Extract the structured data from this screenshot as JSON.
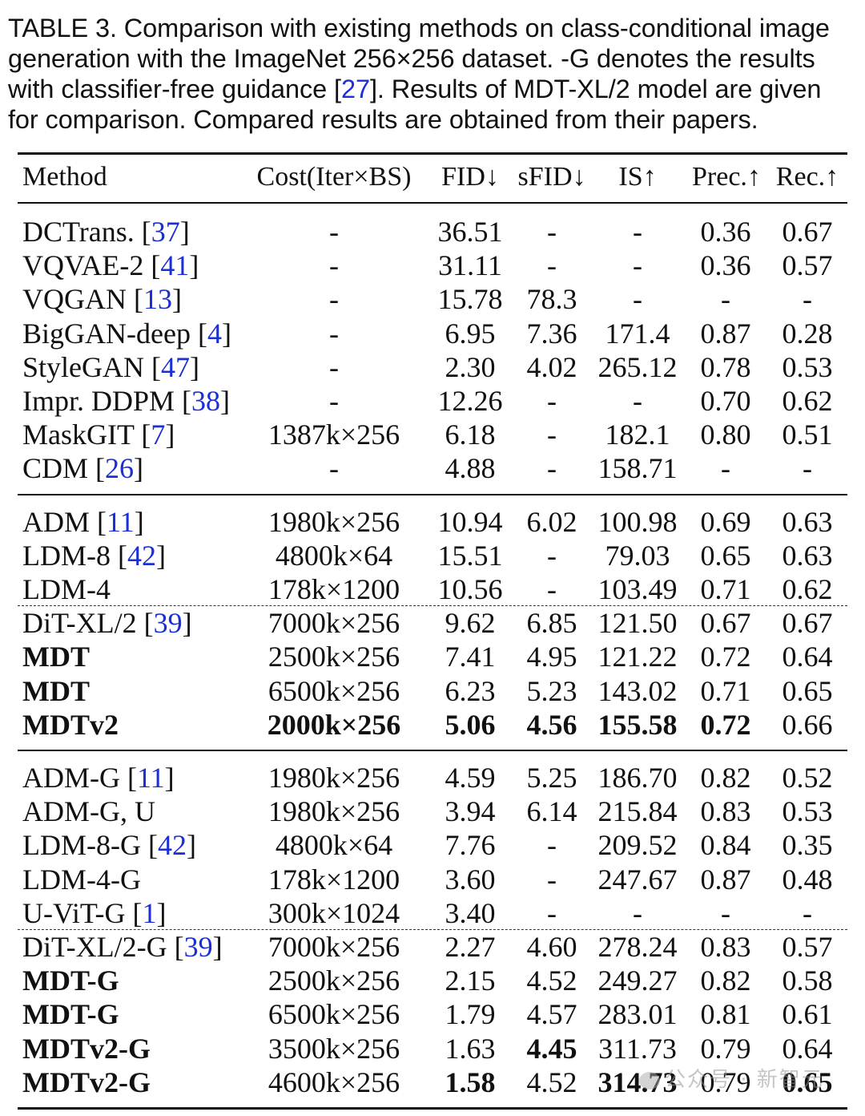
{
  "caption": {
    "lines": [
      "TABLE 3. Comparison with existing methods on class-conditional image",
      "generation with the ImageNet 256×256 dataset. -G denotes the results",
      [
        "with classifier-free guidance [",
        "27",
        "]. Results of MDT-XL/2 model are given"
      ],
      "for comparison. Compared results are obtained from their papers."
    ]
  },
  "table": {
    "headers": [
      "Method",
      "Cost(Iter×BS)",
      "FID↓",
      "sFID↓",
      "IS↑",
      "Prec.↑",
      "Rec.↑"
    ],
    "groups": [
      {
        "rows": [
          {
            "name": "DCTrans.",
            "cite": "37",
            "cost": "-",
            "fid": "36.51",
            "sfid": "-",
            "is": "-",
            "prec": "0.36",
            "rec": "0.67"
          },
          {
            "name": "VQVAE-2",
            "cite": "41",
            "cost": "-",
            "fid": "31.11",
            "sfid": "-",
            "is": "-",
            "prec": "0.36",
            "rec": "0.57"
          },
          {
            "name": "VQGAN",
            "cite": "13",
            "cost": "-",
            "fid": "15.78",
            "sfid": "78.3",
            "is": "-",
            "prec": "-",
            "rec": "-"
          },
          {
            "name": "BigGAN-deep",
            "cite": "4",
            "cost": "-",
            "fid": "6.95",
            "sfid": "7.36",
            "is": "171.4",
            "prec": "0.87",
            "rec": "0.28"
          },
          {
            "name": "StyleGAN",
            "cite": "47",
            "cost": "-",
            "fid": "2.30",
            "sfid": "4.02",
            "is": "265.12",
            "prec": "0.78",
            "rec": "0.53"
          },
          {
            "name": "Impr. DDPM",
            "cite": "38",
            "cost": "-",
            "fid": "12.26",
            "sfid": "-",
            "is": "-",
            "prec": "0.70",
            "rec": "0.62"
          },
          {
            "name": "MaskGIT",
            "cite": "7",
            "cost": "1387k×256",
            "fid": "6.18",
            "sfid": "-",
            "is": "182.1",
            "prec": "0.80",
            "rec": "0.51"
          },
          {
            "name": "CDM",
            "cite": "26",
            "cost": "-",
            "fid": "4.88",
            "sfid": "-",
            "is": "158.71",
            "prec": "-",
            "rec": "-"
          }
        ]
      },
      {
        "rows": [
          {
            "name": "ADM",
            "cite": "11",
            "cost": "1980k×256",
            "fid": "10.94",
            "sfid": "6.02",
            "is": "100.98",
            "prec": "0.69",
            "rec": "0.63"
          },
          {
            "name": "LDM-8",
            "cite": "42",
            "cost": "4800k×64",
            "fid": "15.51",
            "sfid": "-",
            "is": "79.03",
            "prec": "0.65",
            "rec": "0.63"
          },
          {
            "name": "LDM-4",
            "cite": "",
            "cost": "178k×1200",
            "fid": "10.56",
            "sfid": "-",
            "is": "103.49",
            "prec": "0.71",
            "rec": "0.62"
          },
          {
            "name": "DiT-XL/2",
            "cite": "39",
            "cost": "7000k×256",
            "fid": "9.62",
            "sfid": "6.85",
            "is": "121.50",
            "prec": "0.67",
            "rec": "0.67",
            "dashed_above": true
          },
          {
            "name": "MDT",
            "cite": "",
            "cost": "2500k×256",
            "fid": "7.41",
            "sfid": "4.95",
            "is": "121.22",
            "prec": "0.72",
            "rec": "0.64",
            "bold": [
              "name"
            ]
          },
          {
            "name": "MDT",
            "cite": "",
            "cost": "6500k×256",
            "fid": "6.23",
            "sfid": "5.23",
            "is": "143.02",
            "prec": "0.71",
            "rec": "0.65",
            "bold": [
              "name"
            ]
          },
          {
            "name": "MDTv2",
            "cite": "",
            "cost": "2000k×256",
            "fid": "5.06",
            "sfid": "4.56",
            "is": "155.58",
            "prec": "0.72",
            "rec": "0.66",
            "bold": [
              "name",
              "cost",
              "fid",
              "sfid",
              "is",
              "prec"
            ]
          }
        ]
      },
      {
        "rows": [
          {
            "name": "ADM-G",
            "cite": "11",
            "cost": "1980k×256",
            "fid": "4.59",
            "sfid": "5.25",
            "is": "186.70",
            "prec": "0.82",
            "rec": "0.52"
          },
          {
            "name": "ADM-G, U",
            "cite": "",
            "cost": "1980k×256",
            "fid": "3.94",
            "sfid": "6.14",
            "is": "215.84",
            "prec": "0.83",
            "rec": "0.53"
          },
          {
            "name": "LDM-8-G",
            "cite": "42",
            "cost": "4800k×64",
            "fid": "7.76",
            "sfid": "-",
            "is": "209.52",
            "prec": "0.84",
            "rec": "0.35"
          },
          {
            "name": "LDM-4-G",
            "cite": "",
            "cost": "178k×1200",
            "fid": "3.60",
            "sfid": "-",
            "is": "247.67",
            "prec": "0.87",
            "rec": "0.48"
          },
          {
            "name": "U-ViT-G",
            "cite": "1",
            "cost": "300k×1024",
            "fid": "3.40",
            "sfid": "-",
            "is": "-",
            "prec": "-",
            "rec": "-"
          },
          {
            "name": "DiT-XL/2-G",
            "cite": "39",
            "cost": "7000k×256",
            "fid": "2.27",
            "sfid": "4.60",
            "is": "278.24",
            "prec": "0.83",
            "rec": "0.57",
            "dashed_above": true
          },
          {
            "name": "MDT-G",
            "cite": "",
            "cost": "2500k×256",
            "fid": "2.15",
            "sfid": "4.52",
            "is": "249.27",
            "prec": "0.82",
            "rec": "0.58",
            "bold": [
              "name"
            ]
          },
          {
            "name": "MDT-G",
            "cite": "",
            "cost": "6500k×256",
            "fid": "1.79",
            "sfid": "4.57",
            "is": "283.01",
            "prec": "0.81",
            "rec": "0.61",
            "bold": [
              "name"
            ]
          },
          {
            "name": "MDTv2-G",
            "cite": "",
            "cost": "3500k×256",
            "fid": "1.63",
            "sfid": "4.45",
            "is": "311.73",
            "prec": "0.79",
            "rec": "0.64",
            "bold": [
              "name",
              "sfid"
            ]
          },
          {
            "name": "MDTv2-G",
            "cite": "",
            "cost": "4600k×256",
            "fid": "1.58",
            "sfid": "4.52",
            "is": "314.73",
            "prec": "0.79",
            "rec": "0.65",
            "bold": [
              "name",
              "fid",
              "is",
              "rec"
            ]
          }
        ]
      }
    ]
  },
  "watermark": "公众号 · 新智元",
  "colors": {
    "citation": "#1b2fd6",
    "text": "#111111"
  }
}
